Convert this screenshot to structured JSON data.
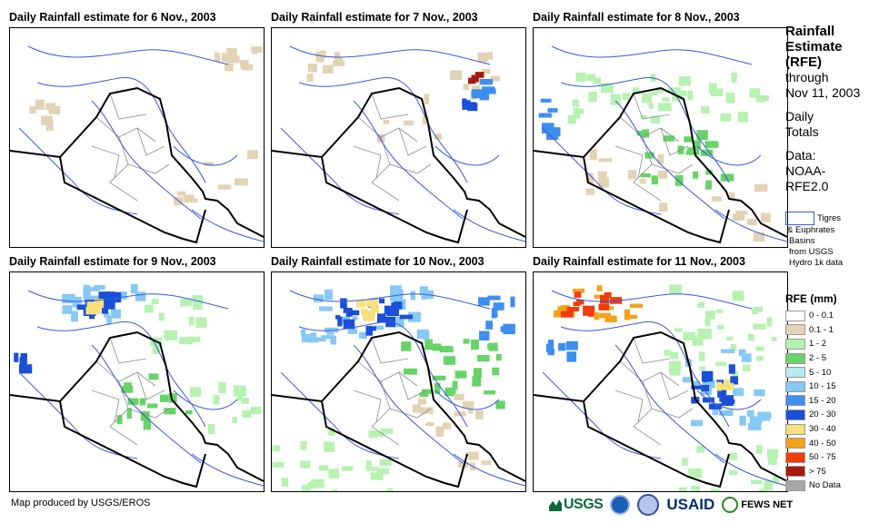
{
  "panels": [
    {
      "title": "Daily Rainfall estimate for 6 Nov., 2003"
    },
    {
      "title": "Daily Rainfall estimate for 7 Nov., 2003"
    },
    {
      "title": "Daily Rainfall estimate for 8 Nov., 2003"
    },
    {
      "title": "Daily Rainfall estimate for 9 Nov., 2003"
    },
    {
      "title": "Daily Rainfall estimate for 10 Nov., 2003"
    },
    {
      "title": "Daily Rainfall estimate for 11 Nov., 2003"
    }
  ],
  "side": {
    "title_lines": [
      "Rainfall",
      "Estimate",
      "(RFE)"
    ],
    "through": "through",
    "date": "Nov 11, 2003",
    "daily": "Daily",
    "totals": "Totals",
    "data_label": "Data:",
    "data_source_1": "NOAA-",
    "data_source_2": "RFE2.0"
  },
  "basin_note": {
    "line1": "Tigres",
    "line2": "& Euphrates",
    "line3": "Basins",
    "line4": "from USGS",
    "line5": "Hydro 1k data"
  },
  "legend": {
    "title": "RFE (mm)",
    "items": [
      {
        "label": "0 - 0.1",
        "color": "#ffffff"
      },
      {
        "label": "0.1 - 1",
        "color": "#e2d3b4"
      },
      {
        "label": "1 - 2",
        "color": "#b6f2b0"
      },
      {
        "label": "2 - 5",
        "color": "#66d466"
      },
      {
        "label": "5 - 10",
        "color": "#b6ecf2"
      },
      {
        "label": "10 - 15",
        "color": "#86c8f6"
      },
      {
        "label": "15 - 20",
        "color": "#3e8ef0"
      },
      {
        "label": "20 - 30",
        "color": "#1a50d8"
      },
      {
        "label": "30 - 40",
        "color": "#f8e07a"
      },
      {
        "label": "40 - 50",
        "color": "#f5a21a"
      },
      {
        "label": "50 - 75",
        "color": "#f03c0a"
      },
      {
        "label": "> 75",
        "color": "#a81a10"
      },
      {
        "label": "No Data",
        "color": "#a8a8a8"
      }
    ]
  },
  "credit": "Map produced by USGS/EROS",
  "logos": {
    "usgs": "USGS",
    "usaid": "USAID",
    "fews": "FEWS NET"
  }
}
